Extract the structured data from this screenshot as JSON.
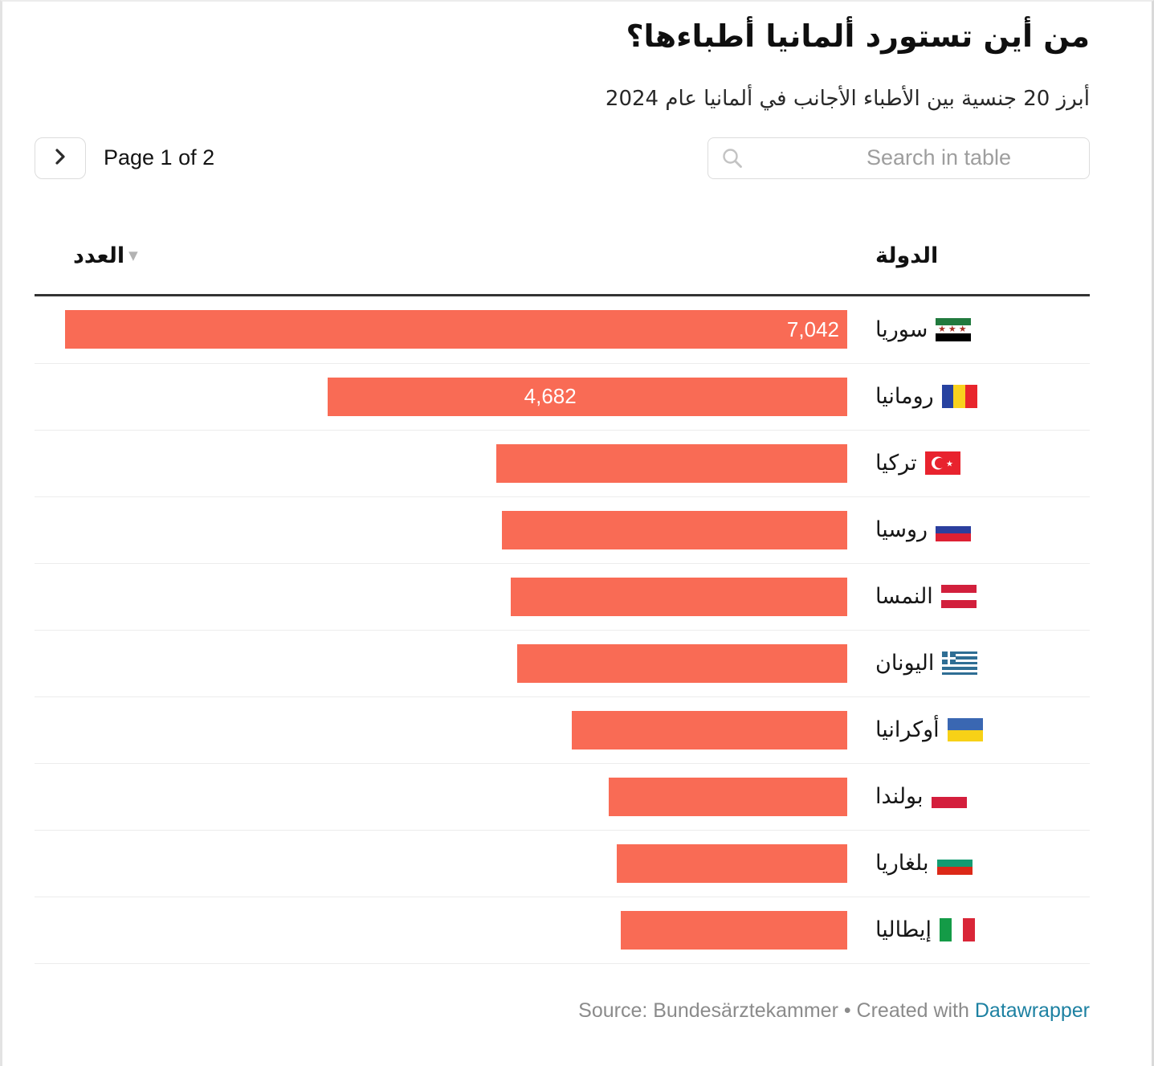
{
  "header": {
    "title": "من أين تستورد ألمانيا أطباءها؟",
    "subtitle": "أبرز 20 جنسية بين الأطباء الأجانب في ألمانيا عام 2024"
  },
  "controls": {
    "page_label": "Page 1 of 2",
    "search_placeholder": "Search in table"
  },
  "table": {
    "value_column_label": "العدد",
    "country_column_label": "الدولة",
    "sort_indicator": "▼",
    "rows": [
      {
        "country": "سوريا",
        "value": 7042,
        "value_label": "7,042",
        "pct": 100,
        "flag": {
          "name": "flag-syria",
          "kind": "h",
          "colors": [
            "#217A3E",
            "#ffffff",
            "#000000"
          ],
          "overlay": "stars",
          "star_color": "#A93226"
        }
      },
      {
        "country": "رومانيا",
        "value": 4682,
        "value_label": "4,682",
        "pct": 66.4,
        "flag": {
          "name": "flag-romania",
          "kind": "v",
          "colors": [
            "#2742A0",
            "#F8D21E",
            "#E8252C"
          ]
        }
      },
      {
        "country": "تركيا",
        "value": 3160,
        "value_label": "",
        "pct": 44.9,
        "flag": {
          "name": "flag-turkey",
          "kind": "turkey",
          "colors": [
            "#E8232E",
            "#ffffff"
          ]
        }
      },
      {
        "country": "روسيا",
        "value": 3100,
        "value_label": "",
        "pct": 44.1,
        "flag": {
          "name": "flag-russia",
          "kind": "h",
          "colors": [
            "#ffffff",
            "#2B3F9E",
            "#DD2033"
          ]
        }
      },
      {
        "country": "النمسا",
        "value": 3030,
        "value_label": "",
        "pct": 43.0,
        "flag": {
          "name": "flag-austria",
          "kind": "h",
          "colors": [
            "#D21F3C",
            "#ffffff",
            "#D21F3C"
          ]
        }
      },
      {
        "country": "اليونان",
        "value": 2970,
        "value_label": "",
        "pct": 42.2,
        "flag": {
          "name": "flag-greece",
          "kind": "greece",
          "colors": [
            "#2F6E94",
            "#ffffff"
          ]
        }
      },
      {
        "country": "أوكرانيا",
        "value": 2480,
        "value_label": "",
        "pct": 35.2,
        "flag": {
          "name": "flag-ukraine",
          "kind": "h",
          "colors": [
            "#3A67B2",
            "#F7D117"
          ]
        }
      },
      {
        "country": "بولندا",
        "value": 2150,
        "value_label": "",
        "pct": 30.5,
        "flag": {
          "name": "flag-poland",
          "kind": "h",
          "colors": [
            "#ffffff",
            "#D41E3C"
          ]
        }
      },
      {
        "country": "بلغاريا",
        "value": 2080,
        "value_label": "",
        "pct": 29.5,
        "flag": {
          "name": "flag-bulgaria",
          "kind": "h",
          "colors": [
            "#ffffff",
            "#149C72",
            "#DC2918"
          ]
        }
      },
      {
        "country": "إيطاليا",
        "value": 2040,
        "value_label": "",
        "pct": 29.0,
        "flag": {
          "name": "flag-italy",
          "kind": "v",
          "colors": [
            "#149B47",
            "#ffffff",
            "#D92638"
          ]
        }
      }
    ]
  },
  "footer": {
    "text": "Source: Bundesärztekammer • Created with",
    "link_text": "Datawrapper"
  },
  "colors": {
    "bar": "#F96B55",
    "bar_value_text": "#ffffff",
    "header_rule": "#333333",
    "row_separator": "#ececec",
    "link": "#1d81a2",
    "footer_text": "#8b8b8b"
  },
  "chart_data": {
    "type": "bar",
    "orientation": "horizontal",
    "direction": "rtl",
    "title": "من أين تستورد ألمانيا أطباءها؟",
    "subtitle": "أبرز 20 جنسية بين الأطباء الأجانب في ألمانيا عام 2024",
    "xlabel": "العدد",
    "ylabel": "الدولة",
    "categories": [
      "سوريا",
      "رومانيا",
      "تركيا",
      "روسيا",
      "النمسا",
      "اليونان",
      "أوكرانيا",
      "بولندا",
      "بلغاريا",
      "إيطاليا"
    ],
    "values": [
      7042,
      4682,
      3160,
      3100,
      3030,
      2970,
      2480,
      2150,
      2080,
      2040
    ],
    "value_estimated_from_bar_length": [
      false,
      false,
      true,
      true,
      true,
      true,
      true,
      true,
      true,
      true
    ],
    "data_labels_shown": [
      "7,042",
      "4,682",
      "",
      "",
      "",
      "",
      "",
      "",
      "",
      ""
    ],
    "xlim": [
      0,
      7042
    ],
    "grid": false,
    "legend": false,
    "pagination": "Page 1 of 2"
  }
}
